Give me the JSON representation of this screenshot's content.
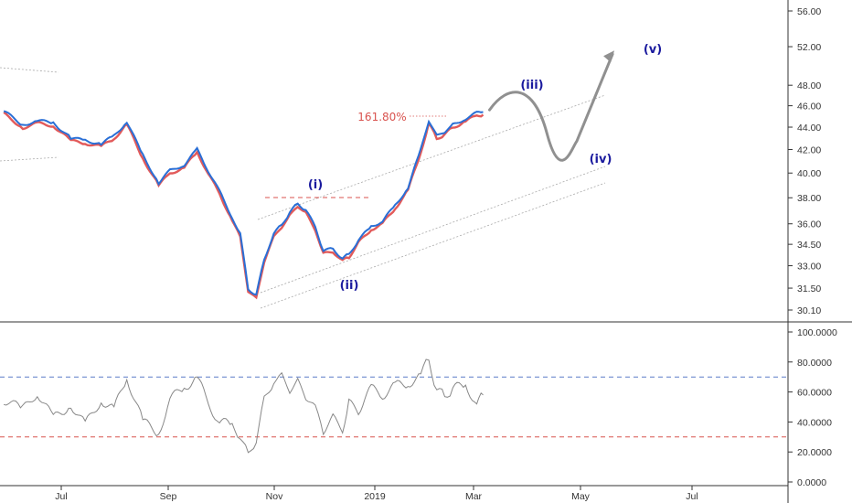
{
  "chart_data": [
    {
      "type": "line",
      "panel": "price",
      "x_ticks": [
        "Jul",
        "Sep",
        "Nov",
        "2019",
        "Mar",
        "May",
        "Jul"
      ],
      "y_ticks": [
        "56.00",
        "52.00",
        "48.00",
        "46.00",
        "44.00",
        "42.00",
        "40.00",
        "38.00",
        "36.00",
        "34.50",
        "33.00",
        "31.50",
        "30.10"
      ],
      "ylim": [
        30.1,
        56.0
      ],
      "y_scale": "log",
      "series": [
        {
          "color": "#2a6fd6",
          "x": [
            "2018-05-20",
            "2018-06-01",
            "2018-06-10",
            "2018-06-20",
            "2018-07-01",
            "2018-07-10",
            "2018-07-20",
            "2018-07-28",
            "2018-08-05",
            "2018-08-15",
            "2018-08-25",
            "2018-09-01",
            "2018-09-10",
            "2018-09-18",
            "2018-09-25",
            "2018-10-02",
            "2018-10-10",
            "2018-10-15",
            "2018-10-20",
            "2018-10-25",
            "2018-10-30",
            "2018-11-05",
            "2018-11-10",
            "2018-11-15",
            "2018-11-20",
            "2018-11-25",
            "2018-12-01",
            "2018-12-06",
            "2018-12-12",
            "2018-12-18",
            "2018-12-22",
            "2018-12-28",
            "2019-01-05",
            "2019-01-12",
            "2019-01-20",
            "2019-01-28",
            "2019-02-05",
            "2019-02-10",
            "2019-02-15",
            "2019-02-20",
            "2019-02-25",
            "2019-03-05",
            "2019-03-12",
            "2019-03-16"
          ],
          "values": [
            45.5,
            44.2,
            44.6,
            44.4,
            43.0,
            42.8,
            42.5,
            43.2,
            44.5,
            41.5,
            39.2,
            40.2,
            40.7,
            42.0,
            40.2,
            38.5,
            36.5,
            35.2,
            31.5,
            31.0,
            33.5,
            35.2,
            36.0,
            36.8,
            37.6,
            37.0,
            35.8,
            34.0,
            34.2,
            33.5,
            33.8,
            34.8,
            35.8,
            36.2,
            37.4,
            38.8,
            42.0,
            44.6,
            43.2,
            43.6,
            44.2,
            44.8,
            45.3,
            45.4
          ]
        }
      ],
      "annotations": {
        "fib_label": "161.80%",
        "waves": [
          "(i)",
          "(ii)",
          "(iii)",
          "(iv)",
          "(v)"
        ],
        "projection_path_values": [
          {
            "x": "2019-03-20",
            "y": 45.6
          },
          {
            "x": "2019-04-05",
            "y": 47.4
          },
          {
            "x": "2019-04-25",
            "y": 43.4
          },
          {
            "x": "2019-05-05",
            "y": 42.4
          },
          {
            "x": "2019-05-20",
            "y": 46.4
          },
          {
            "x": "2019-06-05",
            "y": 51.2
          }
        ]
      }
    },
    {
      "type": "line",
      "panel": "oscillator",
      "x_ticks": [
        "Jul",
        "Sep",
        "Nov",
        "2019",
        "Mar",
        "May",
        "Jul"
      ],
      "y_ticks": [
        "100.0000",
        "80.0000",
        "60.0000",
        "40.0000",
        "20.0000",
        "0.0000"
      ],
      "ylim": [
        0,
        100
      ],
      "reference_lines": [
        70,
        30
      ],
      "series": [
        {
          "color": "#888888",
          "x": [
            "2018-05-20",
            "2018-06-01",
            "2018-06-10",
            "2018-06-20",
            "2018-07-01",
            "2018-07-10",
            "2018-07-20",
            "2018-07-28",
            "2018-08-05",
            "2018-08-15",
            "2018-08-25",
            "2018-09-01",
            "2018-09-10",
            "2018-09-18",
            "2018-09-25",
            "2018-10-02",
            "2018-10-10",
            "2018-10-15",
            "2018-10-20",
            "2018-10-25",
            "2018-10-30",
            "2018-11-05",
            "2018-11-10",
            "2018-11-15",
            "2018-11-20",
            "2018-11-25",
            "2018-12-01",
            "2018-12-06",
            "2018-12-12",
            "2018-12-18",
            "2018-12-22",
            "2018-12-28",
            "2019-01-05",
            "2019-01-12",
            "2019-01-20",
            "2019-01-28",
            "2019-02-05",
            "2019-02-10",
            "2019-02-15",
            "2019-02-20",
            "2019-02-25",
            "2019-03-05",
            "2019-03-12",
            "2019-03-16"
          ],
          "values": [
            55,
            48,
            60,
            42,
            52,
            38,
            55,
            48,
            70,
            40,
            33,
            55,
            63,
            70,
            52,
            40,
            38,
            30,
            18,
            28,
            55,
            68,
            70,
            62,
            66,
            58,
            48,
            35,
            42,
            36,
            52,
            48,
            62,
            58,
            64,
            66,
            70,
            83,
            60,
            58,
            62,
            65,
            52,
            58
          ]
        }
      ]
    }
  ]
}
